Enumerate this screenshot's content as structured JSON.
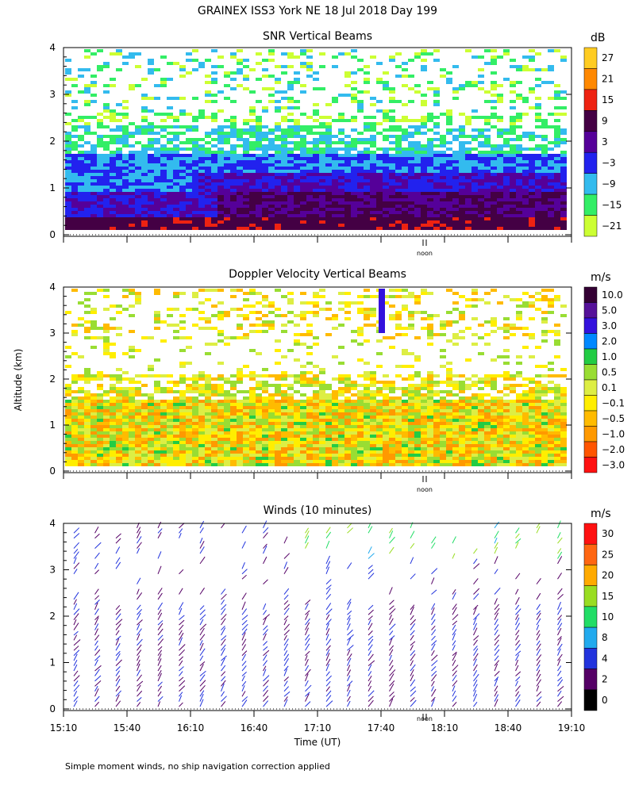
{
  "page": {
    "title": "GRAINEX ISS3 York NE  18 Jul 2018 Day 199",
    "footnote": "Simple moment winds, no ship navigation correction applied",
    "shared_ylabel": "Altitude (km)",
    "xlabel": "Time (UT)",
    "noon_label": "noon"
  },
  "colors": {
    "snr": [
      "#ccff33",
      "#33ee66",
      "#33bbee",
      "#2222ee",
      "#550099",
      "#440044",
      "#ee2211",
      "#ff8800",
      "#ffcc22"
    ],
    "velocity": [
      "#ff1111",
      "#ff5500",
      "#ff9900",
      "#ffbb00",
      "#ffee00",
      "#ddee44",
      "#99dd33",
      "#22cc44",
      "#0088ff",
      "#3311dd",
      "#551199",
      "#330033"
    ],
    "winds": [
      "#000000",
      "#550066",
      "#2233dd",
      "#22aaee",
      "#22dd66",
      "#99dd22",
      "#ffaa00",
      "#ff6611",
      "#ff1111"
    ]
  },
  "chart_data": [
    {
      "type": "heatmap",
      "title": "SNR Vertical Beams",
      "ylim": [
        0,
        4
      ],
      "y_ticks": [
        "0",
        "1",
        "2",
        "3",
        "4"
      ],
      "x_range_hours": [
        15.1667,
        19.1667
      ],
      "colorbar": {
        "unit": "dB",
        "labels": [
          "27",
          "21",
          "15",
          "9",
          "3",
          "−3",
          "−9",
          "−15",
          "−21"
        ]
      }
    },
    {
      "type": "heatmap",
      "title": "Doppler Velocity Vertical Beams",
      "ylim": [
        0,
        4
      ],
      "y_ticks": [
        "0",
        "1",
        "2",
        "3",
        "4"
      ],
      "x_range_hours": [
        15.1667,
        19.1667
      ],
      "colorbar": {
        "unit": "m/s",
        "labels": [
          "10.0",
          "5.0",
          "3.0",
          "2.0",
          "1.0",
          "0.5",
          "0.1",
          "−0.1",
          "−0.5",
          "−1.0",
          "−2.0",
          "−3.0"
        ]
      }
    },
    {
      "type": "scatter",
      "title": "Winds (10 minutes)",
      "ylim": [
        0,
        4
      ],
      "y_ticks": [
        "0",
        "1",
        "2",
        "3",
        "4"
      ],
      "x_ticks": [
        "15:10",
        "15:40",
        "16:10",
        "16:40",
        "17:10",
        "17:40",
        "18:10",
        "18:40",
        "19:10"
      ],
      "colorbar": {
        "unit": "m/s",
        "labels": [
          "30",
          "25",
          "20",
          "15",
          "10",
          "8",
          "4",
          "2",
          "0"
        ]
      }
    }
  ]
}
